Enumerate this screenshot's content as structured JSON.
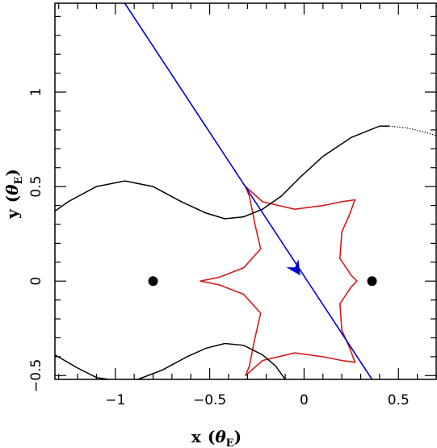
{
  "chart_data": {
    "type": "line",
    "xlabel": "x",
    "xlabel_unit": "θ",
    "xlabel_unit_sub": "E",
    "ylabel": "y",
    "ylabel_unit": "θ",
    "ylabel_unit_sub": "E",
    "xlim": [
      -1.32,
      0.7
    ],
    "ylim": [
      -0.52,
      1.47
    ],
    "grid": false,
    "x_ticks": [
      {
        "value": -1,
        "label": "−1"
      },
      {
        "value": -0.5,
        "label": "−0.5"
      },
      {
        "value": 0,
        "label": "0"
      },
      {
        "value": 0.5,
        "label": "0.5"
      }
    ],
    "y_ticks": [
      {
        "value": -0.5,
        "label": "−0.5"
      },
      {
        "value": 0,
        "label": "0"
      },
      {
        "value": 0.5,
        "label": "0.5"
      },
      {
        "value": 1,
        "label": "1"
      }
    ],
    "lenses": [
      {
        "x": -0.8,
        "y": 0.0
      },
      {
        "x": 0.36,
        "y": 0.0
      }
    ],
    "colors": {
      "caustic": "#d11b1b",
      "trajectory": "#0000cc",
      "critical_curve": "#000000",
      "lens": "#000000"
    },
    "series": [
      {
        "role": "caustic",
        "closed": true,
        "points": [
          [
            -0.31,
            0.5
          ],
          [
            -0.29,
            0.45
          ],
          [
            -0.26,
            0.3
          ],
          [
            -0.23,
            0.17
          ],
          [
            -0.32,
            0.07
          ],
          [
            -0.45,
            0.02
          ],
          [
            -0.55,
            0.0
          ],
          [
            -0.45,
            -0.02
          ],
          [
            -0.32,
            -0.07
          ],
          [
            -0.23,
            -0.17
          ],
          [
            -0.26,
            -0.3
          ],
          [
            -0.29,
            -0.45
          ],
          [
            -0.31,
            -0.5
          ],
          [
            -0.22,
            -0.42
          ],
          [
            -0.05,
            -0.38
          ],
          [
            0.1,
            -0.4
          ],
          [
            0.2,
            -0.42
          ],
          [
            0.27,
            -0.43
          ],
          [
            0.24,
            -0.35
          ],
          [
            0.2,
            -0.26
          ],
          [
            0.19,
            -0.12
          ],
          [
            0.25,
            -0.03
          ],
          [
            0.28,
            0.0
          ],
          [
            0.25,
            0.03
          ],
          [
            0.19,
            0.12
          ],
          [
            0.2,
            0.26
          ],
          [
            0.24,
            0.35
          ],
          [
            0.27,
            0.43
          ],
          [
            0.2,
            0.42
          ],
          [
            0.1,
            0.4
          ],
          [
            -0.05,
            0.38
          ],
          [
            -0.22,
            0.42
          ]
        ]
      },
      {
        "role": "critical-curve",
        "style": "solid",
        "points": [
          [
            -1.32,
            0.37
          ],
          [
            -1.25,
            0.42
          ],
          [
            -1.1,
            0.5
          ],
          [
            -0.95,
            0.53
          ],
          [
            -0.8,
            0.5
          ],
          [
            -0.65,
            0.42
          ],
          [
            -0.52,
            0.36
          ],
          [
            -0.42,
            0.33
          ],
          [
            -0.32,
            0.34
          ],
          [
            -0.22,
            0.38
          ],
          [
            -0.12,
            0.45
          ],
          [
            -0.02,
            0.55
          ],
          [
            0.1,
            0.66
          ],
          [
            0.25,
            0.76
          ],
          [
            0.4,
            0.82
          ],
          [
            0.45,
            0.82
          ]
        ]
      },
      {
        "role": "critical-curve",
        "style": "dotted",
        "points": [
          [
            0.45,
            0.82
          ],
          [
            0.55,
            0.81
          ],
          [
            0.63,
            0.79
          ],
          [
            0.7,
            0.77
          ]
        ]
      },
      {
        "role": "critical-curve",
        "style": "solid",
        "points": [
          [
            -1.32,
            -0.39
          ],
          [
            -1.2,
            -0.46
          ],
          [
            -1.1,
            -0.51
          ],
          [
            -1.0,
            -0.525
          ],
          [
            -0.88,
            -0.52
          ],
          [
            -0.75,
            -0.47
          ],
          [
            -0.62,
            -0.4
          ],
          [
            -0.52,
            -0.355
          ],
          [
            -0.42,
            -0.33
          ],
          [
            -0.32,
            -0.34
          ],
          [
            -0.22,
            -0.39
          ],
          [
            -0.15,
            -0.45
          ],
          [
            -0.1,
            -0.52
          ]
        ]
      },
      {
        "role": "trajectory",
        "points": [
          [
            -0.95,
            1.47
          ],
          [
            0.36,
            -0.52
          ]
        ],
        "arrow_at": [
          -0.02,
          0.03
        ]
      }
    ]
  }
}
